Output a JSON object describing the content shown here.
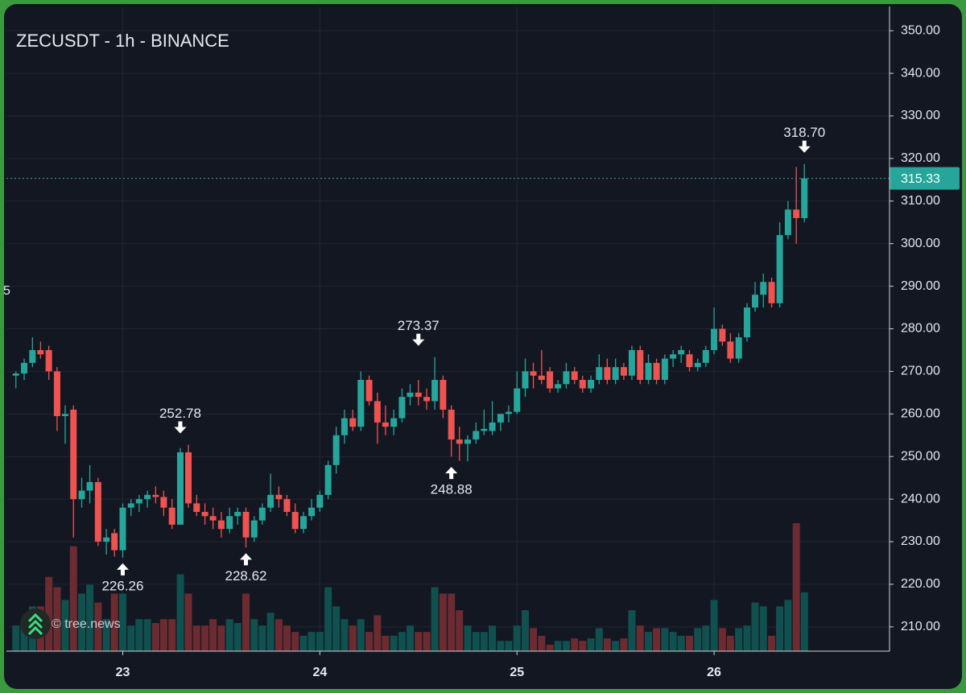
{
  "chart_data": {
    "type": "candlestick",
    "title": "ZECUSDT - 1h - BINANCE",
    "watermark": "© tree.news",
    "clipped_label": "5",
    "up_color": "#26a69a",
    "down_color": "#ef5350",
    "volume_up_color": "#10504f",
    "volume_down_color": "#6b2b30",
    "x": [
      22.458,
      22.5,
      22.542,
      22.583,
      22.625,
      22.667,
      22.708,
      22.75,
      22.792,
      22.833,
      22.875,
      22.917,
      22.958,
      23,
      23.042,
      23.083,
      23.125,
      23.167,
      23.208,
      23.25,
      23.292,
      23.333,
      23.375,
      23.417,
      23.458,
      23.5,
      23.542,
      23.583,
      23.625,
      23.667,
      23.708,
      23.75,
      23.792,
      23.833,
      23.875,
      23.917,
      23.958,
      24,
      24.042,
      24.083,
      24.125,
      24.167,
      24.208,
      24.25,
      24.292,
      24.333,
      24.375,
      24.417,
      24.458,
      24.5,
      24.542,
      24.583,
      24.625,
      24.667,
      24.708,
      24.75,
      24.792,
      24.833,
      24.875,
      24.917,
      24.958,
      25,
      25.042,
      25.083,
      25.125,
      25.167,
      25.208,
      25.25,
      25.292,
      25.333,
      25.375,
      25.417,
      25.458,
      25.5,
      25.542,
      25.583,
      25.625,
      25.667,
      25.708,
      25.75,
      25.792,
      25.833,
      25.875,
      25.917,
      25.958,
      26,
      26.042,
      26.083,
      26.125,
      26.167,
      26.208,
      26.25,
      26.292,
      26.333,
      26.375,
      26.417,
      26.458
    ],
    "open": [
      269,
      269.5,
      272,
      275,
      275,
      270,
      259.5,
      261,
      240,
      242,
      244,
      230,
      232,
      228,
      238,
      239,
      240,
      241,
      240.5,
      238,
      234,
      251,
      239,
      237,
      236,
      235,
      233,
      236,
      237,
      231,
      235,
      238,
      241,
      240,
      237,
      233,
      236,
      238,
      241,
      248,
      255,
      259,
      257,
      268,
      263,
      258,
      257,
      259,
      264,
      265,
      264,
      263,
      268,
      261,
      254,
      253,
      254,
      256,
      256,
      258,
      260,
      260.5,
      266,
      270,
      269,
      270,
      266,
      267,
      270,
      268,
      266,
      268,
      271,
      268,
      271,
      269,
      275,
      268,
      272,
      268,
      273,
      274,
      274,
      271,
      272,
      275,
      280,
      277,
      273,
      278,
      285,
      288,
      291,
      286,
      302,
      308,
      306
    ],
    "high": [
      270,
      273,
      278,
      277,
      276,
      271,
      262,
      262,
      245,
      248,
      245,
      233,
      233,
      239,
      240,
      241,
      242,
      243,
      242,
      240,
      252,
      252.78,
      241,
      239,
      238,
      237,
      238,
      238,
      238,
      236,
      239,
      246,
      243,
      241,
      239,
      237,
      240,
      242,
      249,
      257,
      261,
      261,
      270,
      269,
      265,
      262,
      261,
      266,
      267,
      268,
      266,
      273.37,
      269,
      262,
      257,
      255,
      258,
      261,
      263,
      260,
      262,
      270,
      273,
      272,
      275,
      271,
      268,
      272,
      271,
      269,
      269,
      274,
      273,
      273,
      272,
      276,
      276,
      274,
      273,
      274,
      275,
      276,
      275,
      273,
      276,
      285,
      281,
      279,
      279,
      286,
      291,
      293,
      292,
      305,
      310,
      318,
      318.7
    ],
    "low": [
      266,
      268,
      271,
      273,
      268,
      256,
      253,
      231,
      238,
      239,
      229,
      227,
      226.5,
      226.26,
      236,
      237,
      238,
      239,
      236,
      233,
      234,
      238,
      236,
      234,
      233,
      231,
      232,
      234,
      228.62,
      230,
      234,
      237,
      238,
      236,
      232,
      232,
      235,
      237,
      240,
      246,
      253,
      256,
      256,
      262,
      253,
      255,
      255,
      258,
      262,
      262,
      261,
      261,
      259,
      250,
      249,
      248.88,
      253,
      255,
      255,
      256,
      258,
      260,
      264,
      266,
      267,
      265,
      265,
      266,
      267,
      265,
      265,
      267,
      267,
      267,
      268,
      268,
      267,
      267,
      267,
      267,
      271,
      272,
      270,
      270,
      271,
      274,
      276,
      272,
      272,
      277,
      284,
      285,
      285,
      285,
      301,
      300,
      305
    ],
    "close": [
      269.5,
      272,
      275,
      274,
      270,
      259.5,
      260,
      240,
      242,
      244,
      230,
      231,
      228,
      238,
      239,
      240,
      241,
      240.5,
      238,
      234,
      251,
      239,
      237,
      236,
      235,
      233,
      236,
      237,
      231,
      235,
      238,
      241,
      240,
      237,
      233,
      236,
      238,
      241,
      248,
      255,
      259,
      257,
      268,
      263,
      258,
      257,
      259,
      264,
      265,
      264,
      263,
      268,
      261,
      254,
      253,
      254,
      256,
      256.5,
      258,
      260,
      260.5,
      266,
      270,
      269,
      268,
      266,
      267,
      270,
      268,
      266,
      268,
      271,
      268,
      271,
      269,
      275,
      268,
      272,
      268,
      273,
      274,
      275,
      271,
      272,
      275,
      280,
      277,
      273,
      278,
      285,
      288,
      291,
      286,
      302,
      308,
      306,
      315.33
    ],
    "volume": [
      20,
      20,
      35,
      35,
      58,
      50,
      40,
      82,
      45,
      52,
      38,
      25,
      45,
      45,
      20,
      25,
      25,
      22,
      25,
      25,
      60,
      45,
      20,
      20,
      25,
      20,
      25,
      22,
      45,
      25,
      20,
      30,
      25,
      20,
      15,
      12,
      15,
      15,
      50,
      35,
      25,
      20,
      25,
      15,
      28,
      12,
      12,
      15,
      20,
      15,
      15,
      50,
      45,
      45,
      32,
      20,
      15,
      15,
      20,
      8,
      8,
      20,
      32,
      18,
      12,
      5,
      8,
      8,
      10,
      8,
      10,
      18,
      10,
      8,
      10,
      32,
      20,
      15,
      18,
      18,
      15,
      12,
      12,
      18,
      20,
      40,
      18,
      12,
      18,
      20,
      38,
      35,
      12,
      35,
      40,
      100,
      46
    ],
    "volume_lim": [
      0,
      100
    ],
    "xlim": [
      22.41,
      26.89
    ],
    "xticks": [
      23,
      24,
      25,
      26
    ],
    "ylim": [
      204.3,
      355.7
    ],
    "yticks": [
      {
        "value": 210,
        "label": "210.00"
      },
      {
        "value": 220,
        "label": "220.00"
      },
      {
        "value": 230,
        "label": "230.00"
      },
      {
        "value": 240,
        "label": "240.00"
      },
      {
        "value": 250,
        "label": "250.00"
      },
      {
        "value": 260,
        "label": "260.00"
      },
      {
        "value": 270,
        "label": "270.00"
      },
      {
        "value": 280,
        "label": "280.00"
      },
      {
        "value": 290,
        "label": "290.00"
      },
      {
        "value": 300,
        "label": "300.00"
      },
      {
        "value": 310,
        "label": "310.00"
      },
      {
        "value": 320,
        "label": "320.00"
      },
      {
        "value": 330,
        "label": "330.00"
      },
      {
        "value": 340,
        "label": "340.00"
      },
      {
        "value": 350,
        "label": "350.00"
      }
    ],
    "grid": true,
    "last_price": 315.33,
    "annotations": [
      {
        "label": "226.26",
        "x": 23,
        "y": 226.26,
        "position": "below"
      },
      {
        "label": "252.78",
        "x": 23.292,
        "y": 252.78,
        "position": "above"
      },
      {
        "label": "228.62",
        "x": 23.625,
        "y": 228.62,
        "position": "below"
      },
      {
        "label": "273.37",
        "x": 24.5,
        "y": 273.37,
        "position": "above"
      },
      {
        "label": "248.88",
        "x": 24.667,
        "y": 248.88,
        "position": "below"
      },
      {
        "label": "318.70",
        "x": 26.458,
        "y": 318.7,
        "position": "above"
      }
    ]
  }
}
